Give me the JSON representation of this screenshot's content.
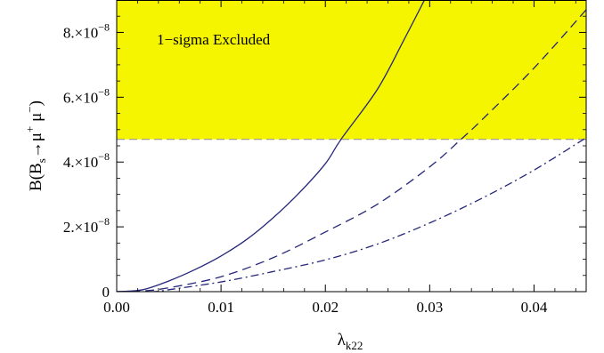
{
  "chart_data": {
    "type": "line",
    "xlabel": "λ",
    "xlabel_sub": "k22",
    "ylabel_parts": {
      "prefix": "B(B",
      "sub": "s",
      "arrow": "→μ",
      "sup1": "+",
      "mid": " μ",
      "sup2": "−",
      "suffix": ")"
    },
    "xlim": [
      0,
      0.045
    ],
    "ylim": [
      0,
      9e-08
    ],
    "x_ticks": [
      0.0,
      0.01,
      0.02,
      0.03,
      0.04
    ],
    "x_tick_labels": [
      "0.00",
      "0.01",
      "0.02",
      "0.03",
      "0.04"
    ],
    "y_ticks": [
      0,
      2e-08,
      4e-08,
      6e-08,
      8e-08
    ],
    "y_tick_labels": [
      {
        "mant": "0",
        "exp": ""
      },
      {
        "mant": "2.×10",
        "exp": "−8"
      },
      {
        "mant": "4.×10",
        "exp": "−8"
      },
      {
        "mant": "6.×10",
        "exp": "−8"
      },
      {
        "mant": "8.×10",
        "exp": "−8"
      }
    ],
    "excluded_region": {
      "y_min": 4.7e-08,
      "label": "1−sigma Excluded",
      "color": "#f5f500"
    },
    "series_color": "#26267a",
    "series": [
      {
        "dash": "solid",
        "x": [
          0.0,
          0.0025,
          0.005,
          0.0075,
          0.01,
          0.0125,
          0.015,
          0.0175,
          0.02,
          0.0215,
          0.025,
          0.0275,
          0.0295
        ],
        "y": [
          0,
          6e-10,
          3.3e-09,
          6.8e-09,
          1.1e-08,
          1.62e-08,
          2.28e-08,
          3.05e-08,
          3.95e-08,
          4.7e-08,
          6.25e-08,
          7.75e-08,
          9e-08
        ]
      },
      {
        "dash": "dashed",
        "x": [
          0.0,
          0.0025,
          0.005,
          0.01,
          0.015,
          0.02,
          0.025,
          0.03,
          0.033,
          0.035,
          0.04,
          0.045
        ],
        "y": [
          0,
          2e-10,
          1.2e-09,
          4.6e-09,
          1.05e-08,
          1.84e-08,
          2.7e-08,
          3.85e-08,
          4.7e-08,
          5.3e-08,
          6.9e-08,
          8.7e-08
        ]
      },
      {
        "dash": "dashdot",
        "x": [
          0.0,
          0.0035,
          0.005,
          0.01,
          0.015,
          0.02,
          0.025,
          0.03,
          0.035,
          0.04,
          0.045
        ],
        "y": [
          0,
          0.0,
          6e-10,
          3e-09,
          6.2e-09,
          9.8e-09,
          1.47e-08,
          2.12e-08,
          2.88e-08,
          3.75e-08,
          4.75e-08
        ]
      }
    ]
  }
}
